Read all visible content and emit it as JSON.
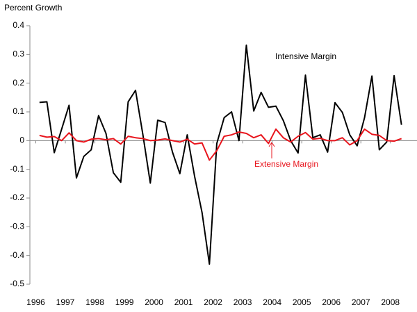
{
  "chart_data": {
    "type": "line",
    "y_label": "Percent Growth",
    "annotations": [
      "Intensive Margin",
      "Extensive Margin"
    ],
    "x": [
      1996.125,
      1996.375,
      1996.625,
      1996.875,
      1997.125,
      1997.375,
      1997.625,
      1997.875,
      1998.125,
      1998.375,
      1998.625,
      1998.875,
      1999.125,
      1999.375,
      1999.625,
      1999.875,
      2000.125,
      2000.375,
      2000.625,
      2000.875,
      2001.125,
      2001.375,
      2001.625,
      2001.875,
      2002.125,
      2002.375,
      2002.625,
      2002.875,
      2003.125,
      2003.375,
      2003.625,
      2003.875,
      2004.125,
      2004.375,
      2004.625,
      2004.875,
      2005.125,
      2005.375,
      2005.625,
      2005.875,
      2006.125,
      2006.375,
      2006.625,
      2006.875,
      2007.125,
      2007.375,
      2007.625,
      2007.875,
      2008.125,
      2008.375
    ],
    "series": [
      {
        "name": "Intensive Margin",
        "color": "#000000",
        "values": [
          0.133,
          0.135,
          -0.042,
          0.04,
          0.123,
          -0.13,
          -0.055,
          -0.032,
          0.087,
          0.025,
          -0.112,
          -0.145,
          0.135,
          0.175,
          0.02,
          -0.148,
          0.071,
          0.063,
          -0.04,
          -0.115,
          0.02,
          -0.125,
          -0.25,
          -0.43,
          -0.01,
          0.08,
          0.1,
          0.0,
          0.332,
          0.103,
          0.168,
          0.116,
          0.12,
          0.07,
          0.0,
          -0.043,
          0.228,
          0.01,
          0.02,
          -0.04,
          0.132,
          0.098,
          0.02,
          -0.018,
          0.08,
          0.225,
          -0.032,
          -0.005,
          0.226,
          0.055
        ]
      },
      {
        "name": "Extensive Margin",
        "color": "#e8141c",
        "values": [
          0.018,
          0.012,
          0.014,
          0.0,
          0.027,
          0.0,
          -0.005,
          0.005,
          0.007,
          0.003,
          0.007,
          -0.012,
          0.015,
          0.01,
          0.007,
          0.0,
          0.002,
          0.006,
          0.0,
          -0.005,
          0.005,
          -0.012,
          -0.008,
          -0.068,
          -0.035,
          0.015,
          0.02,
          0.03,
          0.025,
          0.01,
          0.02,
          -0.01,
          0.04,
          0.01,
          -0.005,
          0.015,
          0.028,
          0.005,
          0.008,
          0.0,
          0.0,
          0.01,
          -0.015,
          0.0,
          0.04,
          0.022,
          0.018,
          0.0,
          -0.002,
          0.007
        ]
      }
    ],
    "xlim": [
      1995.8,
      2008.9
    ],
    "xticks": [
      1996,
      1997,
      1998,
      1999,
      2000,
      2001,
      2002,
      2003,
      2004,
      2005,
      2006,
      2007,
      2008
    ],
    "ylim": [
      -0.5,
      0.4
    ],
    "yticks": [
      0.4,
      0.3,
      0.2,
      0.1,
      0,
      -0.1,
      -0.2,
      -0.3,
      -0.4,
      -0.5
    ],
    "grid": false
  }
}
